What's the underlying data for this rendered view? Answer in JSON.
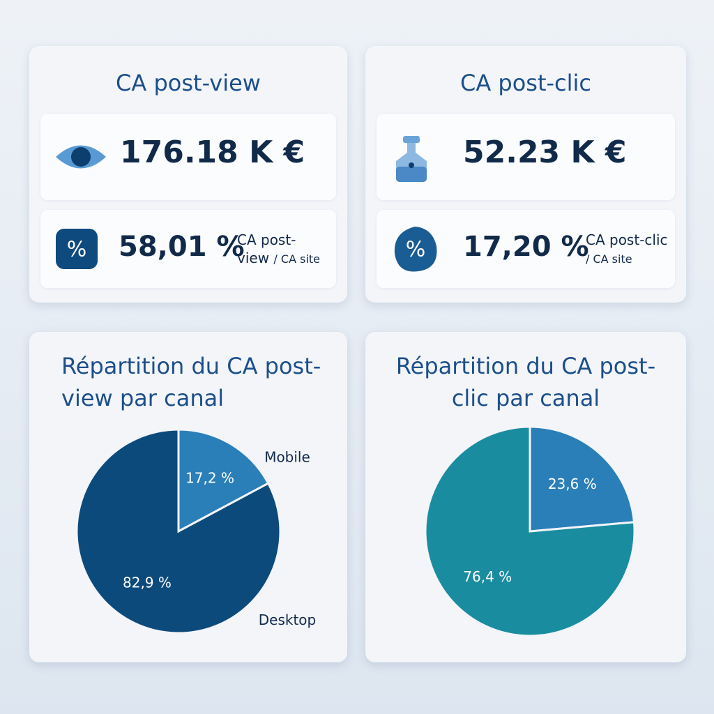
{
  "kpis": [
    {
      "title": "CA post-view",
      "amount": "176.18 K €",
      "percent": "58,01 %",
      "percent_desc": "CA post-view",
      "percent_base": "/ CA site"
    },
    {
      "title": "CA post-clic",
      "amount": "52.23 K €",
      "percent": "17,20 %",
      "percent_desc": "CA post-clic",
      "percent_base": "/ CA site"
    }
  ],
  "chart_data": [
    {
      "type": "pie",
      "title": "Répartition du CA post-view par canal",
      "categories": [
        "Mobile",
        "Desktop"
      ],
      "values": [
        17.2,
        82.9
      ],
      "value_labels": [
        "17,2 %",
        "82,9 %"
      ],
      "colors": [
        "#2b7fb8",
        "#0d4a7c"
      ]
    },
    {
      "type": "pie",
      "title": "Répartition du CA post-clic par canal",
      "values": [
        23.6,
        76.4
      ],
      "value_labels": [
        "23,6 %",
        "76,4 %"
      ],
      "colors": [
        "#2b7fb8",
        "#1a8ca0"
      ]
    }
  ]
}
